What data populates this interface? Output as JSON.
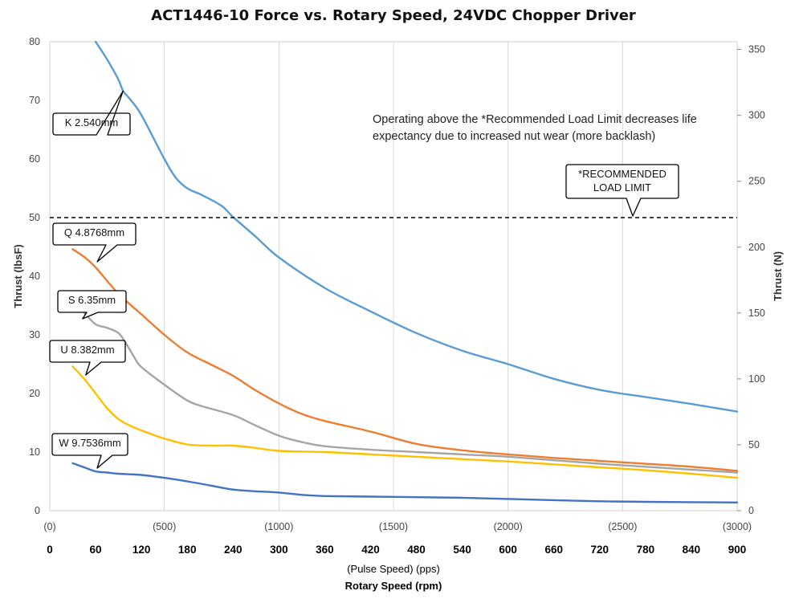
{
  "chart_data": {
    "type": "line",
    "title": "ACT1446-10  Force vs. Rotary Speed, 24VDC Chopper Driver",
    "y_left_label": "Thrust (lbsF)",
    "y_right_label": "Thrust (N)",
    "x_sub_label": "(Pulse Speed) (pps)",
    "x_main_label": "Rotary Speed (rpm)",
    "x_range_rpm": [
      0,
      900
    ],
    "y_left_range": [
      0,
      80
    ],
    "y_right_range": [
      0,
      355.86
    ],
    "y_left_ticks": [
      "0",
      "10",
      "20",
      "30",
      "40",
      "50",
      "60",
      "70",
      "80"
    ],
    "y_right_ticks": [
      "0",
      "50",
      "100",
      "150",
      "200",
      "250",
      "300",
      "350"
    ],
    "pps_ticks": [
      "(0)",
      "(500)",
      "(1000)",
      "(1500)",
      "(2000)",
      "(2500)",
      "(3000)"
    ],
    "rpm_ticks": [
      "0",
      "60",
      "120",
      "180",
      "240",
      "300",
      "360",
      "420",
      "480",
      "540",
      "600",
      "660",
      "720",
      "780",
      "840",
      "900"
    ],
    "grid": true,
    "recommended_load_limit_lbsf": 50,
    "note": [
      "Operating above the *Recommended Load Limit decreases life",
      "expectancy due to increased nut wear (more backlash)"
    ],
    "limit_callout": [
      "*RECOMMENDED",
      "LOAD LIMIT"
    ],
    "series": [
      {
        "name": "K 2.540mm",
        "color": "#5B9BD5",
        "x": [
          60,
          75,
          90,
          96,
          105,
          120,
          150,
          165,
          180,
          200,
          225,
          240,
          270,
          300,
          360,
          420,
          480,
          540,
          600,
          660,
          720,
          780,
          840,
          900
        ],
        "y": [
          80,
          77,
          73.5,
          71.6,
          70.2,
          67.5,
          60,
          56.8,
          55,
          53.8,
          52,
          50.1,
          46.7,
          43.2,
          38,
          34,
          30.3,
          27.3,
          25,
          22.5,
          20.6,
          19.4,
          18.2,
          16.9
        ]
      },
      {
        "name": "Q 4.8768mm",
        "color": "#ED7D31",
        "x": [
          30,
          45,
          60,
          90,
          120,
          150,
          180,
          210,
          240,
          270,
          300,
          330,
          360,
          420,
          480,
          540,
          600,
          660,
          720,
          780,
          840,
          900
        ],
        "y": [
          44.6,
          43.3,
          41.5,
          37,
          33.5,
          30,
          27,
          25,
          23,
          20.5,
          18.3,
          16.5,
          15.3,
          13.5,
          11.4,
          10.3,
          9.6,
          9,
          8.5,
          8,
          7.5,
          6.8
        ]
      },
      {
        "name": "S 6.35mm",
        "color": "#A5A5A5",
        "x": [
          45,
          60,
          75,
          90,
          100,
          110,
          120,
          150,
          180,
          200,
          240,
          270,
          300,
          330,
          360,
          420,
          480,
          540,
          600,
          660,
          720,
          780,
          840,
          900
        ],
        "y": [
          33.8,
          31.8,
          31.2,
          30.3,
          28.5,
          26.3,
          24.5,
          21.5,
          18.8,
          17.8,
          16.3,
          14.5,
          12.8,
          11.7,
          11,
          10.4,
          10,
          9.6,
          9.2,
          8.6,
          8,
          7.5,
          7,
          6.5
        ]
      },
      {
        "name": "U 8.382mm",
        "color": "#FFC000",
        "x": [
          30,
          45,
          60,
          75,
          90,
          105,
          120,
          150,
          180,
          210,
          240,
          270,
          300,
          360,
          420,
          480,
          540,
          600,
          660,
          720,
          780,
          840,
          900
        ],
        "y": [
          24.6,
          22.5,
          20,
          17.5,
          15.6,
          14.5,
          13.7,
          12.3,
          11.3,
          11.1,
          11.1,
          10.7,
          10.2,
          10,
          9.6,
          9.2,
          8.8,
          8.4,
          7.9,
          7.4,
          6.9,
          6.3,
          5.6
        ]
      },
      {
        "name": "W 9.7536mm",
        "color": "#4472C4",
        "x": [
          30,
          45,
          60,
          75,
          90,
          105,
          120,
          150,
          180,
          210,
          240,
          270,
          300,
          330,
          360,
          420,
          480,
          540,
          600,
          660,
          720,
          780,
          840,
          900
        ],
        "y": [
          8.1,
          7.4,
          6.7,
          6.5,
          6.3,
          6.2,
          6.1,
          5.6,
          5.0,
          4.3,
          3.6,
          3.3,
          3.1,
          2.7,
          2.5,
          2.4,
          2.3,
          2.2,
          2.0,
          1.8,
          1.6,
          1.5,
          1.45,
          1.4
        ]
      }
    ]
  }
}
